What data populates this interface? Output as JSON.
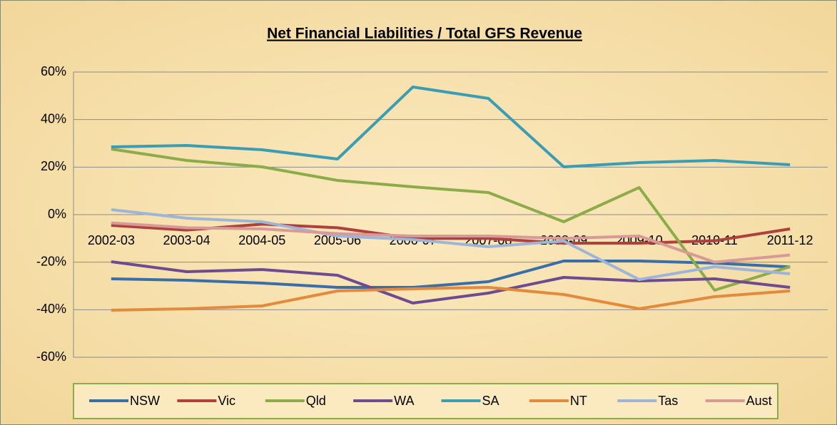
{
  "chart_data": {
    "type": "line",
    "title": "Net Financial Liabilities / Total GFS Revenue",
    "categories": [
      "2002-03",
      "2003-04",
      "2004-05",
      "2005-06",
      "2006-07",
      "2007-08",
      "2008-09",
      "2009-10",
      "2010-11",
      "2011-12"
    ],
    "series": [
      {
        "name": "NSW",
        "color": "#3a6ea8",
        "values": [
          -27,
          -27.6,
          -28.8,
          -30.6,
          -30.6,
          -28.2,
          -19.5,
          -19.5,
          -20.4,
          -22
        ]
      },
      {
        "name": "Vic",
        "color": "#b0403c",
        "values": [
          -4.5,
          -6.5,
          -4,
          -5.5,
          -10,
          -10,
          -12,
          -12,
          -11,
          -6
        ]
      },
      {
        "name": "Qld",
        "color": "#8cac4a",
        "values": [
          27.6,
          22.8,
          20.1,
          14.4,
          11.7,
          9.3,
          -3,
          11.4,
          -31.8,
          -21.9
        ]
      },
      {
        "name": "WA",
        "color": "#6e4b91",
        "values": [
          -19.8,
          -24,
          -23.1,
          -25.5,
          -37.2,
          -33,
          -26.4,
          -27.9,
          -27,
          -30.6
        ]
      },
      {
        "name": "SA",
        "color": "#3a9db4",
        "values": [
          28.5,
          29.1,
          27.3,
          23.4,
          53.7,
          48.9,
          20.1,
          21.9,
          22.8,
          21
        ]
      },
      {
        "name": "NT",
        "color": "#e38a3c",
        "values": [
          -40.2,
          -39.6,
          -38.4,
          -32.1,
          -31.2,
          -30.6,
          -33.6,
          -39.6,
          -34.5,
          -32.1
        ]
      },
      {
        "name": "Tas",
        "color": "#9db6d8",
        "values": [
          2.1,
          -1.5,
          -3,
          -9,
          -10.5,
          -13.5,
          -11.1,
          -27.3,
          -21.9,
          -24.9
        ]
      },
      {
        "name": "Aust",
        "color": "#d89a98",
        "values": [
          -3.5,
          -5.5,
          -6,
          -8,
          -9,
          -9,
          -10,
          -9,
          -20,
          -17
        ]
      }
    ],
    "ylim": [
      -60,
      60
    ],
    "yticks": [
      {
        "value": -60,
        "label": "-60%"
      },
      {
        "value": -40,
        "label": "-40%"
      },
      {
        "value": -20,
        "label": "-20%"
      },
      {
        "value": 0,
        "label": "0%"
      },
      {
        "value": 20,
        "label": "20%"
      },
      {
        "value": 40,
        "label": "40%"
      },
      {
        "value": 60,
        "label": "60%"
      }
    ],
    "grid": true,
    "legend": "bottom"
  }
}
